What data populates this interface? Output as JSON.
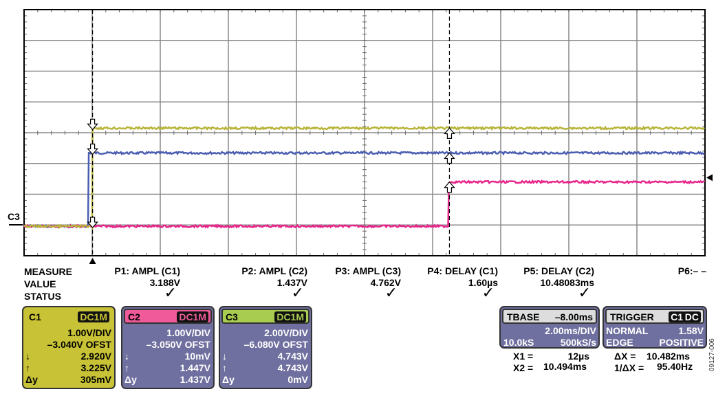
{
  "chart_data": {
    "type": "line",
    "x_unit": "ms",
    "xlim": [
      -2,
      18
    ],
    "x_divisions": 10,
    "y_divisions": 8,
    "grid": true,
    "series": [
      {
        "name": "C1",
        "color": "#b8b43a",
        "vdiv": 1.0,
        "offset": -3.04,
        "x": [
          -2,
          0.012,
          0.012,
          18
        ],
        "y": [
          0,
          0,
          3.188,
          3.188
        ]
      },
      {
        "name": "C2",
        "color": "#e8268c",
        "vdiv": 1.0,
        "offset": -3.05,
        "x": [
          -2,
          10.48,
          10.48,
          18
        ],
        "y": [
          0.01,
          0.01,
          1.447,
          1.447
        ]
      },
      {
        "name": "C3",
        "color": "#4a5db0",
        "vdiv": 2.0,
        "offset": -6.08,
        "x": [
          -2,
          -0.1,
          -0.1,
          18
        ],
        "y": [
          0,
          0,
          4.762,
          4.762
        ]
      }
    ],
    "cursors_ms": [
      0.012,
      10.494
    ],
    "trigger_level_V": 1.58,
    "ground_label": "C3"
  },
  "measure": {
    "labels": [
      "MEASURE",
      "VALUE",
      "STATUS"
    ],
    "params": [
      {
        "name": "P1: AMPL (C1)",
        "value": "3.188V",
        "status": "✓"
      },
      {
        "name": "P2: AMPL (C2)",
        "value": "1.437V",
        "status": "✓"
      },
      {
        "name": "P3: AMPL (C3)",
        "value": "4.762V",
        "status": "✓"
      },
      {
        "name": "P4: DELAY (C1)",
        "value": "1.60µs",
        "status": "✓"
      },
      {
        "name": "P5: DELAY (C2)",
        "value": "10.48083ms",
        "status": "✓"
      },
      {
        "name": "P6:– –",
        "value": "",
        "status": ""
      }
    ]
  },
  "channels": [
    {
      "name": "C1",
      "coupling": "DC1M",
      "vdiv": "1.00V/DIV",
      "ofst": "–3.040V OFST",
      "down": "↓",
      "down_v": "2.920V",
      "up": "↑",
      "up_v": "3.225V",
      "dy": "Δy",
      "dy_v": "305mV",
      "color": "#c8c236"
    },
    {
      "name": "C2",
      "coupling": "DC1M",
      "vdiv": "1.00V/DIV",
      "ofst": "–3.050V OFST",
      "down": "↓",
      "down_v": "10mV",
      "up": "↑",
      "up_v": "1.447V",
      "dy": "Δy",
      "dy_v": "1.437V",
      "color": "#f05a9a"
    },
    {
      "name": "C3",
      "coupling": "DC1M",
      "vdiv": "2.00V/DIV",
      "ofst": "–6.080V OFST",
      "down": "↓",
      "down_v": "4.743V",
      "up": "↑",
      "up_v": "4.743V",
      "dy": "Δy",
      "dy_v": "0mV",
      "color": "#a8cc50"
    }
  ],
  "tbase": {
    "label": "TBASE",
    "delay": "–8.00ms",
    "tdiv": "2.00ms/DIV",
    "samples": "10.0kS",
    "rate": "500kS/s"
  },
  "trigger": {
    "label": "TRIGGER",
    "src": "C1",
    "coupling": "DC",
    "mode": "NORMAL",
    "level": "1.58V",
    "type": "EDGE",
    "slope": "POSITIVE"
  },
  "cursors": {
    "x1_label": "X1 =",
    "x1": "12µs",
    "x2_label": "X2 =",
    "x2": "10.494ms",
    "dx_label": "ΔX =",
    "dx": "10.482ms",
    "inv_label": "1/ΔX =",
    "inv": "95.40Hz"
  },
  "figure_id": "09127-006"
}
